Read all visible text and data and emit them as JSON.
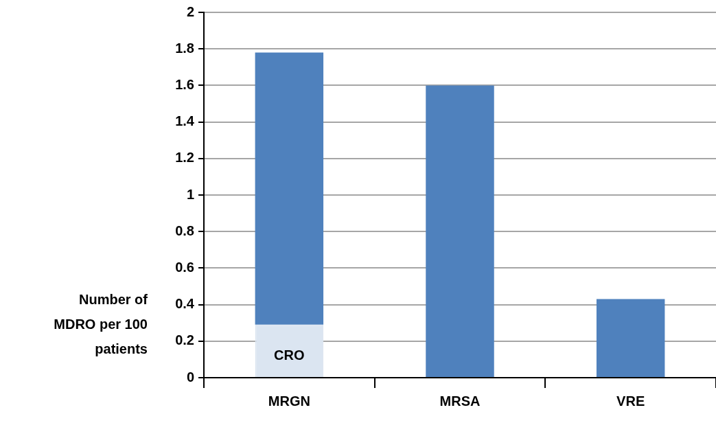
{
  "chart_data": {
    "type": "bar",
    "ylabel": "Number of MDRO per 100 patients",
    "categories": [
      "MRGN",
      "MRSA",
      "VRE"
    ],
    "stacked": true,
    "series": [
      {
        "name": "CRO",
        "color": "#dbe5f1",
        "values": [
          0.29,
          null,
          null
        ]
      },
      {
        "color": "#4f81bd",
        "values": [
          1.49,
          1.6,
          0.43
        ]
      }
    ],
    "ylim": [
      0,
      2
    ],
    "yticks": [
      0,
      0.2,
      0.4,
      0.6,
      0.8,
      1,
      1.2,
      1.4,
      1.6,
      1.8,
      2
    ],
    "grid": "y",
    "legend": false
  }
}
